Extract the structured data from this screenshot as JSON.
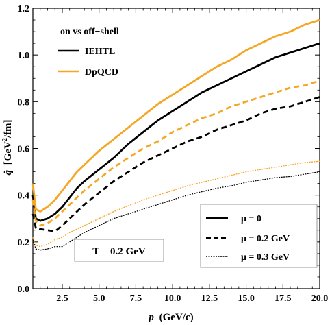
{
  "chart_data": {
    "type": "line",
    "xlabel_var": "p",
    "xlabel_unit": "(GeV/c)",
    "ylabel_var": "q̂",
    "ylabel_unit_pre": "[GeV",
    "ylabel_unit_sup": "2",
    "ylabel_unit_post": "/fm]",
    "xlim": [
      0.5,
      20.0
    ],
    "ylim": [
      0.0,
      1.2
    ],
    "xticks": [
      2.5,
      5.0,
      7.5,
      10.0,
      12.5,
      15.0,
      17.5,
      20.0
    ],
    "xtick_labels": [
      "2.5",
      "5.0",
      "7.5",
      "10.0",
      "12.5",
      "15.0",
      "17.5",
      "20.0"
    ],
    "yticks": [
      0.0,
      0.2,
      0.4,
      0.6,
      0.8,
      1.0,
      1.2
    ],
    "ytick_labels": [
      "0.0",
      "0.2",
      "0.4",
      "0.6",
      "0.8",
      "1.0",
      "1.2"
    ],
    "grid": false,
    "colors": {
      "IEHTL": "#000000",
      "DpQCD": "#f5a623"
    },
    "legend_model": {
      "title": "on vs off−shell",
      "position": "top-left",
      "entries": [
        {
          "label": "IEHTL",
          "color": "#000000"
        },
        {
          "label": "DpQCD",
          "color": "#f5a623"
        }
      ]
    },
    "legend_mu": {
      "position": "bottom-right",
      "entries": [
        {
          "label": "μ = 0",
          "style": "solid"
        },
        {
          "label": "μ = 0.2 GeV",
          "style": "dashed"
        },
        {
          "label": "μ = 0.3 GeV",
          "style": "dotted"
        }
      ]
    },
    "annotation": "T = 0.2 GeV",
    "series": [
      {
        "model": "IEHTL",
        "mu": "0",
        "style": "solid",
        "color": "#000000",
        "x": [
          0.5,
          0.7,
          1.0,
          1.5,
          2.0,
          2.5,
          3.0,
          3.5,
          4.0,
          5.0,
          6.0,
          6.5,
          7.0,
          8.0,
          9.0,
          10.0,
          11.0,
          12.0,
          13.0,
          14.0,
          15.0,
          16.0,
          17.0,
          18.0,
          19.0,
          20.0
        ],
        "y": [
          0.4,
          0.3,
          0.29,
          0.3,
          0.32,
          0.35,
          0.39,
          0.43,
          0.46,
          0.51,
          0.56,
          0.59,
          0.62,
          0.67,
          0.72,
          0.76,
          0.8,
          0.84,
          0.87,
          0.9,
          0.93,
          0.96,
          0.99,
          1.01,
          1.03,
          1.05
        ]
      },
      {
        "model": "DpQCD",
        "mu": "0",
        "style": "solid",
        "color": "#f5a623",
        "x": [
          0.5,
          0.7,
          1.0,
          1.5,
          2.0,
          2.5,
          3.0,
          3.5,
          4.0,
          5.0,
          6.0,
          7.0,
          8.0,
          9.0,
          10.0,
          11.0,
          12.0,
          13.0,
          14.0,
          15.0,
          16.0,
          17.0,
          18.0,
          19.0,
          20.0
        ],
        "y": [
          0.45,
          0.34,
          0.33,
          0.35,
          0.38,
          0.42,
          0.46,
          0.5,
          0.53,
          0.59,
          0.64,
          0.69,
          0.74,
          0.79,
          0.83,
          0.87,
          0.91,
          0.95,
          0.98,
          1.02,
          1.05,
          1.08,
          1.1,
          1.13,
          1.15
        ]
      },
      {
        "model": "IEHTL",
        "mu": "0.2 GeV",
        "style": "dashed",
        "color": "#000000",
        "x": [
          0.5,
          0.7,
          1.0,
          1.5,
          2.0,
          2.5,
          3.0,
          3.5,
          4.0,
          5.0,
          6.0,
          7.0,
          8.0,
          9.0,
          10.0,
          11.0,
          12.0,
          13.0,
          14.0,
          15.0,
          16.0,
          17.0,
          18.0,
          19.0,
          20.0
        ],
        "y": [
          0.32,
          0.26,
          0.255,
          0.25,
          0.245,
          0.27,
          0.3,
          0.33,
          0.36,
          0.41,
          0.46,
          0.5,
          0.54,
          0.57,
          0.6,
          0.63,
          0.65,
          0.68,
          0.7,
          0.72,
          0.75,
          0.77,
          0.78,
          0.8,
          0.82
        ]
      },
      {
        "model": "DpQCD",
        "mu": "0.2 GeV",
        "style": "dashed",
        "color": "#f5a623",
        "x": [
          0.5,
          0.7,
          1.0,
          1.5,
          2.0,
          2.5,
          3.0,
          3.5,
          4.0,
          5.0,
          6.0,
          7.0,
          8.0,
          9.0,
          10.0,
          11.0,
          12.0,
          13.0,
          14.0,
          15.0,
          16.0,
          17.0,
          18.0,
          19.0,
          20.0
        ],
        "y": [
          0.38,
          0.29,
          0.27,
          0.28,
          0.3,
          0.33,
          0.36,
          0.39,
          0.42,
          0.47,
          0.52,
          0.56,
          0.6,
          0.63,
          0.67,
          0.7,
          0.73,
          0.75,
          0.78,
          0.8,
          0.82,
          0.84,
          0.86,
          0.87,
          0.89
        ]
      },
      {
        "model": "IEHTL",
        "mu": "0.3 GeV",
        "style": "dotted",
        "color": "#000000",
        "x": [
          0.5,
          0.7,
          1.0,
          1.5,
          2.0,
          2.5,
          3.0,
          4.0,
          5.0,
          6.0,
          7.0,
          8.0,
          9.0,
          10.0,
          11.0,
          12.0,
          13.0,
          14.0,
          15.0,
          16.0,
          17.0,
          18.0,
          19.0,
          20.0
        ],
        "y": [
          0.21,
          0.17,
          0.165,
          0.17,
          0.18,
          0.18,
          0.2,
          0.24,
          0.27,
          0.3,
          0.32,
          0.34,
          0.36,
          0.38,
          0.4,
          0.415,
          0.43,
          0.44,
          0.455,
          0.465,
          0.475,
          0.48,
          0.49,
          0.5
        ]
      },
      {
        "model": "DpQCD",
        "mu": "0.3 GeV",
        "style": "dotted",
        "color": "#f5a623",
        "x": [
          0.5,
          0.7,
          1.0,
          1.5,
          2.0,
          2.5,
          3.0,
          4.0,
          5.0,
          6.0,
          7.0,
          8.0,
          9.0,
          10.0,
          11.0,
          12.0,
          13.0,
          14.0,
          15.0,
          16.0,
          17.0,
          18.0,
          19.0,
          20.0
        ],
        "y": [
          0.22,
          0.185,
          0.18,
          0.19,
          0.21,
          0.22,
          0.24,
          0.27,
          0.3,
          0.33,
          0.355,
          0.38,
          0.4,
          0.42,
          0.44,
          0.455,
          0.47,
          0.485,
          0.5,
          0.51,
          0.52,
          0.53,
          0.54,
          0.545
        ]
      }
    ]
  }
}
